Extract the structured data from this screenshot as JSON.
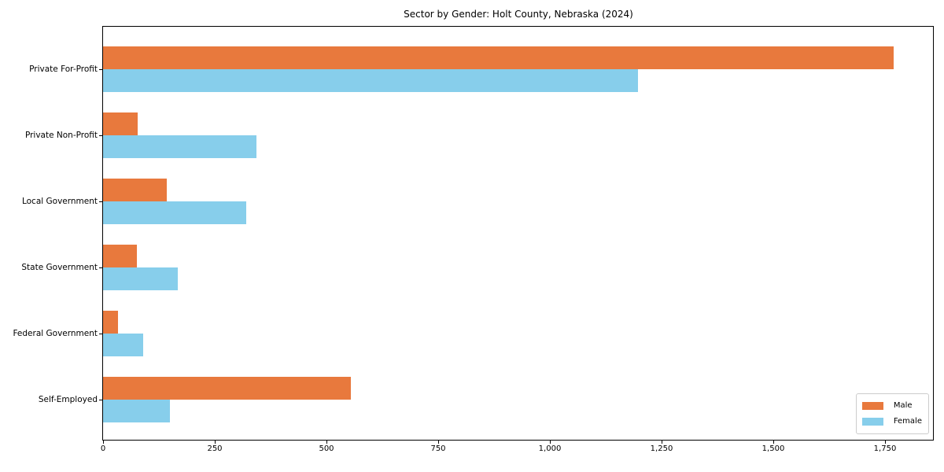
{
  "chart_data": {
    "type": "bar",
    "orientation": "horizontal",
    "title": "Sector by Gender: Holt County, Nebraska (2024)",
    "categories": [
      "Private For-Profit",
      "Private Non-Profit",
      "Local Government",
      "State Government",
      "Federal Government",
      "Self-Employed"
    ],
    "series": [
      {
        "name": "Male",
        "color": "#e8793d",
        "values": [
          1770,
          78,
          143,
          75,
          33,
          554
        ]
      },
      {
        "name": "Female",
        "color": "#87ceeb",
        "values": [
          1198,
          344,
          321,
          168,
          90,
          150
        ]
      }
    ],
    "xlabel": "",
    "ylabel": "",
    "xlim": [
      0,
      1858
    ],
    "xticks": [
      0,
      250,
      500,
      750,
      1000,
      1250,
      1500,
      1750
    ],
    "xtick_labels": [
      "0",
      "250",
      "500",
      "750",
      "1,000",
      "1,250",
      "1,500",
      "1,750"
    ],
    "legend_position": "lower right",
    "grid": false,
    "bar_order_note": "Male bar drawn above Female bar within each category group"
  }
}
